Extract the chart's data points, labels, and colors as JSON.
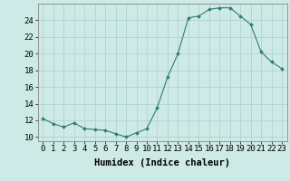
{
  "x": [
    0,
    1,
    2,
    3,
    4,
    5,
    6,
    7,
    8,
    9,
    10,
    11,
    12,
    13,
    14,
    15,
    16,
    17,
    18,
    19,
    20,
    21,
    22,
    23
  ],
  "y": [
    12.2,
    11.6,
    11.2,
    11.7,
    11.0,
    10.9,
    10.8,
    10.4,
    10.0,
    10.5,
    11.0,
    13.5,
    17.2,
    20.0,
    24.3,
    24.5,
    25.3,
    25.5,
    25.5,
    24.5,
    23.5,
    20.2,
    19.0,
    18.2
  ],
  "line_color": "#2e7d6e",
  "marker": "D",
  "marker_size": 2.0,
  "bg_color": "#ceeae6",
  "grid_color": "#b0d4d0",
  "xlabel": "Humidex (Indice chaleur)",
  "xlim": [
    -0.5,
    23.5
  ],
  "ylim": [
    9.5,
    26.0
  ],
  "yticks": [
    10,
    12,
    14,
    16,
    18,
    20,
    22,
    24
  ],
  "xticks": [
    0,
    1,
    2,
    3,
    4,
    5,
    6,
    7,
    8,
    9,
    10,
    11,
    12,
    13,
    14,
    15,
    16,
    17,
    18,
    19,
    20,
    21,
    22,
    23
  ],
  "xlabel_fontsize": 7.5,
  "tick_fontsize": 6.5
}
